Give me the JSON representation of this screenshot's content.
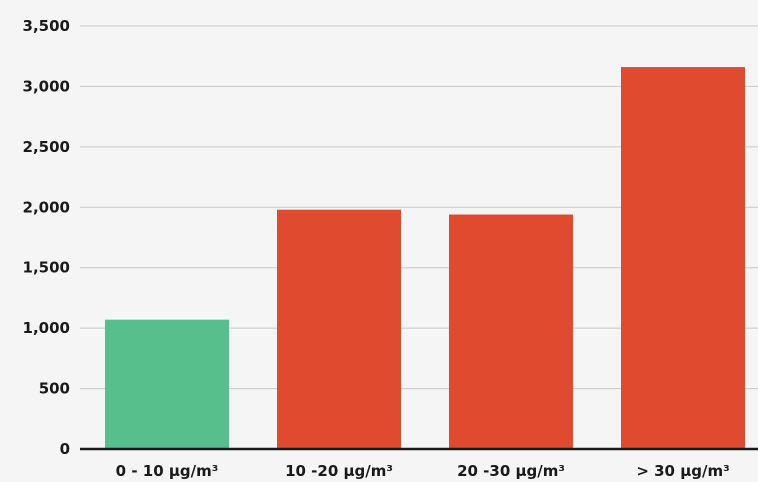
{
  "chart_data": {
    "type": "bar",
    "categories": [
      "0 - 10 μg/m³",
      "10 -20 μg/m³",
      "20 -30 μg/m³",
      "> 30 μg/m³"
    ],
    "values": [
      1070,
      1980,
      1940,
      3160
    ],
    "bar_colors": [
      "#57bf8c",
      "#e04a2e",
      "#e04a2e",
      "#e04a2e"
    ],
    "ylim": [
      0,
      3500
    ],
    "yticks": [
      0,
      500,
      1000,
      1500,
      2000,
      2500,
      3000,
      3500
    ],
    "ytick_labels": [
      "0",
      "500",
      "1,000",
      "1,500",
      "2,000",
      "2,500",
      "3,000",
      "3,500"
    ],
    "grid": true,
    "title": "",
    "xlabel": "",
    "ylabel": ""
  },
  "colors": {
    "background": "#f5f5f5",
    "gridline": "#c8c8c8",
    "axis": "#1a1a1a"
  }
}
